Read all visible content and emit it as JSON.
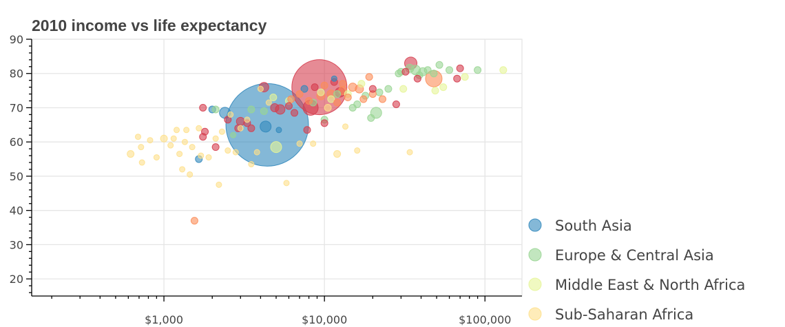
{
  "chart_data": {
    "type": "scatter",
    "title": "2010 income vs life expectancy",
    "xlabel": "",
    "ylabel": "",
    "xscale": "log",
    "xlim": [
      150,
      170000
    ],
    "ylim": [
      15,
      90
    ],
    "x_ticks": [
      1000,
      10000,
      100000
    ],
    "x_tick_labels": [
      "$1,000",
      "$10,000",
      "$100,000"
    ],
    "y_ticks": [
      20,
      30,
      40,
      50,
      60,
      70,
      80,
      90
    ],
    "y_tick_labels": [
      "20",
      "30",
      "40",
      "50",
      "60",
      "70",
      "80",
      "90"
    ],
    "grid": true,
    "legend_position": "right",
    "series": [
      {
        "name": "South Asia",
        "color": "#3288bd",
        "points": [
          {
            "x": 4400,
            "y": 65,
            "size": 60
          },
          {
            "x": 4300,
            "y": 64.5,
            "size": 8
          },
          {
            "x": 2400,
            "y": 68.5,
            "size": 8
          },
          {
            "x": 1650,
            "y": 55,
            "size": 5
          },
          {
            "x": 2000,
            "y": 69.5,
            "size": 5
          },
          {
            "x": 7500,
            "y": 75.5,
            "size": 5
          },
          {
            "x": 5200,
            "y": 63.5,
            "size": 4
          },
          {
            "x": 11500,
            "y": 78.5,
            "size": 4
          }
        ]
      },
      {
        "name": "Europe & Central Asia",
        "color": "#99d594",
        "points": [
          {
            "x": 21000,
            "y": 68.5,
            "size": 8
          },
          {
            "x": 37000,
            "y": 81,
            "size": 7
          },
          {
            "x": 34000,
            "y": 81.5,
            "size": 6
          },
          {
            "x": 41000,
            "y": 80.5,
            "size": 6
          },
          {
            "x": 29000,
            "y": 80,
            "size": 5
          },
          {
            "x": 44000,
            "y": 81,
            "size": 5
          },
          {
            "x": 52000,
            "y": 82.5,
            "size": 5
          },
          {
            "x": 60000,
            "y": 81,
            "size": 5
          },
          {
            "x": 90000,
            "y": 81,
            "size": 5
          },
          {
            "x": 25000,
            "y": 75.5,
            "size": 5
          },
          {
            "x": 22000,
            "y": 74.5,
            "size": 5
          },
          {
            "x": 19500,
            "y": 67,
            "size": 5
          },
          {
            "x": 15000,
            "y": 70,
            "size": 5
          },
          {
            "x": 16000,
            "y": 71,
            "size": 5
          },
          {
            "x": 12000,
            "y": 74,
            "size": 5
          },
          {
            "x": 10000,
            "y": 66.5,
            "size": 5
          },
          {
            "x": 3500,
            "y": 69.5,
            "size": 5
          },
          {
            "x": 2100,
            "y": 69.5,
            "size": 5
          },
          {
            "x": 4200,
            "y": 69,
            "size": 5
          },
          {
            "x": 2700,
            "y": 62,
            "size": 4
          },
          {
            "x": 8500,
            "y": 71.5,
            "size": 5
          },
          {
            "x": 18000,
            "y": 73.5,
            "size": 5
          },
          {
            "x": 30000,
            "y": 80.5,
            "size": 5
          },
          {
            "x": 39000,
            "y": 79.5,
            "size": 5
          },
          {
            "x": 48000,
            "y": 80,
            "size": 5
          }
        ]
      },
      {
        "name": "Middle East & North Africa",
        "color": "#e6f598",
        "points": [
          {
            "x": 130000,
            "y": 81,
            "size": 5
          },
          {
            "x": 75000,
            "y": 79,
            "size": 5
          },
          {
            "x": 55000,
            "y": 76,
            "size": 5
          },
          {
            "x": 49000,
            "y": 75,
            "size": 5
          },
          {
            "x": 31000,
            "y": 75.5,
            "size": 5
          },
          {
            "x": 17000,
            "y": 77,
            "size": 5
          },
          {
            "x": 14000,
            "y": 74,
            "size": 5
          },
          {
            "x": 11000,
            "y": 72.5,
            "size": 5
          },
          {
            "x": 6000,
            "y": 72,
            "size": 5
          },
          {
            "x": 5000,
            "y": 58.5,
            "size": 8
          },
          {
            "x": 4800,
            "y": 73,
            "size": 5
          },
          {
            "x": 9500,
            "y": 74.5,
            "size": 5
          }
        ]
      },
      {
        "name": "Sub-Saharan Africa",
        "color": "#fee08b",
        "points": [
          {
            "x": 620,
            "y": 56.5,
            "size": 5
          },
          {
            "x": 690,
            "y": 61.5,
            "size": 4
          },
          {
            "x": 720,
            "y": 58.5,
            "size": 4
          },
          {
            "x": 730,
            "y": 54,
            "size": 4
          },
          {
            "x": 820,
            "y": 60.5,
            "size": 4
          },
          {
            "x": 900,
            "y": 55.5,
            "size": 4
          },
          {
            "x": 1000,
            "y": 61,
            "size": 5
          },
          {
            "x": 1100,
            "y": 59,
            "size": 4
          },
          {
            "x": 1150,
            "y": 61,
            "size": 4
          },
          {
            "x": 1200,
            "y": 63.5,
            "size": 4
          },
          {
            "x": 1250,
            "y": 56.5,
            "size": 4
          },
          {
            "x": 1300,
            "y": 52,
            "size": 4
          },
          {
            "x": 1350,
            "y": 60,
            "size": 4
          },
          {
            "x": 1380,
            "y": 63.5,
            "size": 4
          },
          {
            "x": 1450,
            "y": 50.5,
            "size": 4
          },
          {
            "x": 1500,
            "y": 58.5,
            "size": 4
          },
          {
            "x": 1650,
            "y": 64,
            "size": 4
          },
          {
            "x": 1700,
            "y": 56,
            "size": 4
          },
          {
            "x": 1900,
            "y": 55.5,
            "size": 4
          },
          {
            "x": 2100,
            "y": 61,
            "size": 4
          },
          {
            "x": 2200,
            "y": 47.5,
            "size": 4
          },
          {
            "x": 2300,
            "y": 63,
            "size": 4
          },
          {
            "x": 2500,
            "y": 57.5,
            "size": 4
          },
          {
            "x": 2800,
            "y": 57,
            "size": 4
          },
          {
            "x": 3000,
            "y": 64,
            "size": 4
          },
          {
            "x": 3300,
            "y": 66.5,
            "size": 4
          },
          {
            "x": 3500,
            "y": 53.5,
            "size": 4
          },
          {
            "x": 3800,
            "y": 57,
            "size": 4
          },
          {
            "x": 4000,
            "y": 75.5,
            "size": 4
          },
          {
            "x": 5800,
            "y": 48,
            "size": 4
          },
          {
            "x": 7000,
            "y": 59.5,
            "size": 4
          },
          {
            "x": 8500,
            "y": 59.5,
            "size": 4
          },
          {
            "x": 12000,
            "y": 56.5,
            "size": 5
          },
          {
            "x": 13500,
            "y": 64.5,
            "size": 4
          },
          {
            "x": 16000,
            "y": 57.5,
            "size": 4
          },
          {
            "x": 34000,
            "y": 57,
            "size": 4
          },
          {
            "x": 10500,
            "y": 70,
            "size": 5
          },
          {
            "x": 2600,
            "y": 68,
            "size": 4
          },
          {
            "x": 4500,
            "y": 71.5,
            "size": 4
          }
        ]
      },
      {
        "name": "",
        "color": "#fc8d59",
        "points": [
          {
            "x": 1550,
            "y": 37,
            "size": 5
          },
          {
            "x": 48000,
            "y": 78.5,
            "size": 12
          },
          {
            "x": 15000,
            "y": 76,
            "size": 6
          },
          {
            "x": 13000,
            "y": 75,
            "size": 6
          },
          {
            "x": 11000,
            "y": 74,
            "size": 6
          },
          {
            "x": 16500,
            "y": 75.5,
            "size": 6
          },
          {
            "x": 14000,
            "y": 73,
            "size": 5
          },
          {
            "x": 9500,
            "y": 73.5,
            "size": 6
          },
          {
            "x": 10000,
            "y": 76.5,
            "size": 5
          },
          {
            "x": 19000,
            "y": 79,
            "size": 5
          },
          {
            "x": 20000,
            "y": 74,
            "size": 5
          },
          {
            "x": 23000,
            "y": 72.5,
            "size": 5
          },
          {
            "x": 12000,
            "y": 71.5,
            "size": 5
          },
          {
            "x": 17500,
            "y": 72.5,
            "size": 5
          },
          {
            "x": 8000,
            "y": 72,
            "size": 5
          },
          {
            "x": 7000,
            "y": 74,
            "size": 5
          },
          {
            "x": 6200,
            "y": 72.5,
            "size": 5
          },
          {
            "x": 13000,
            "y": 77,
            "size": 5
          }
        ]
      },
      {
        "name": "",
        "color": "#d53e4f",
        "points": [
          {
            "x": 9300,
            "y": 76,
            "size": 40
          },
          {
            "x": 8200,
            "y": 70,
            "size": 11
          },
          {
            "x": 34500,
            "y": 83,
            "size": 9
          },
          {
            "x": 12500,
            "y": 74.5,
            "size": 7
          },
          {
            "x": 4200,
            "y": 76,
            "size": 7
          },
          {
            "x": 5300,
            "y": 69.5,
            "size": 7
          },
          {
            "x": 4900,
            "y": 70,
            "size": 6
          },
          {
            "x": 3000,
            "y": 66,
            "size": 6
          },
          {
            "x": 1750,
            "y": 70,
            "size": 5
          },
          {
            "x": 1800,
            "y": 63,
            "size": 5
          },
          {
            "x": 1750,
            "y": 61.5,
            "size": 5
          },
          {
            "x": 2500,
            "y": 66.5,
            "size": 5
          },
          {
            "x": 2900,
            "y": 64,
            "size": 5
          },
          {
            "x": 3300,
            "y": 65.5,
            "size": 5
          },
          {
            "x": 3500,
            "y": 64,
            "size": 5
          },
          {
            "x": 2100,
            "y": 58.5,
            "size": 5
          },
          {
            "x": 6500,
            "y": 68.5,
            "size": 5
          },
          {
            "x": 7800,
            "y": 63.5,
            "size": 5
          },
          {
            "x": 10000,
            "y": 65.5,
            "size": 5
          },
          {
            "x": 8700,
            "y": 76,
            "size": 5
          },
          {
            "x": 11500,
            "y": 77.5,
            "size": 5
          },
          {
            "x": 32000,
            "y": 80.5,
            "size": 5
          },
          {
            "x": 38000,
            "y": 78.5,
            "size": 5
          },
          {
            "x": 28000,
            "y": 71,
            "size": 5
          },
          {
            "x": 20000,
            "y": 75.5,
            "size": 5
          },
          {
            "x": 67000,
            "y": 78.5,
            "size": 5
          },
          {
            "x": 70000,
            "y": 81.5,
            "size": 5
          },
          {
            "x": 6000,
            "y": 70.5,
            "size": 5
          }
        ]
      }
    ]
  }
}
